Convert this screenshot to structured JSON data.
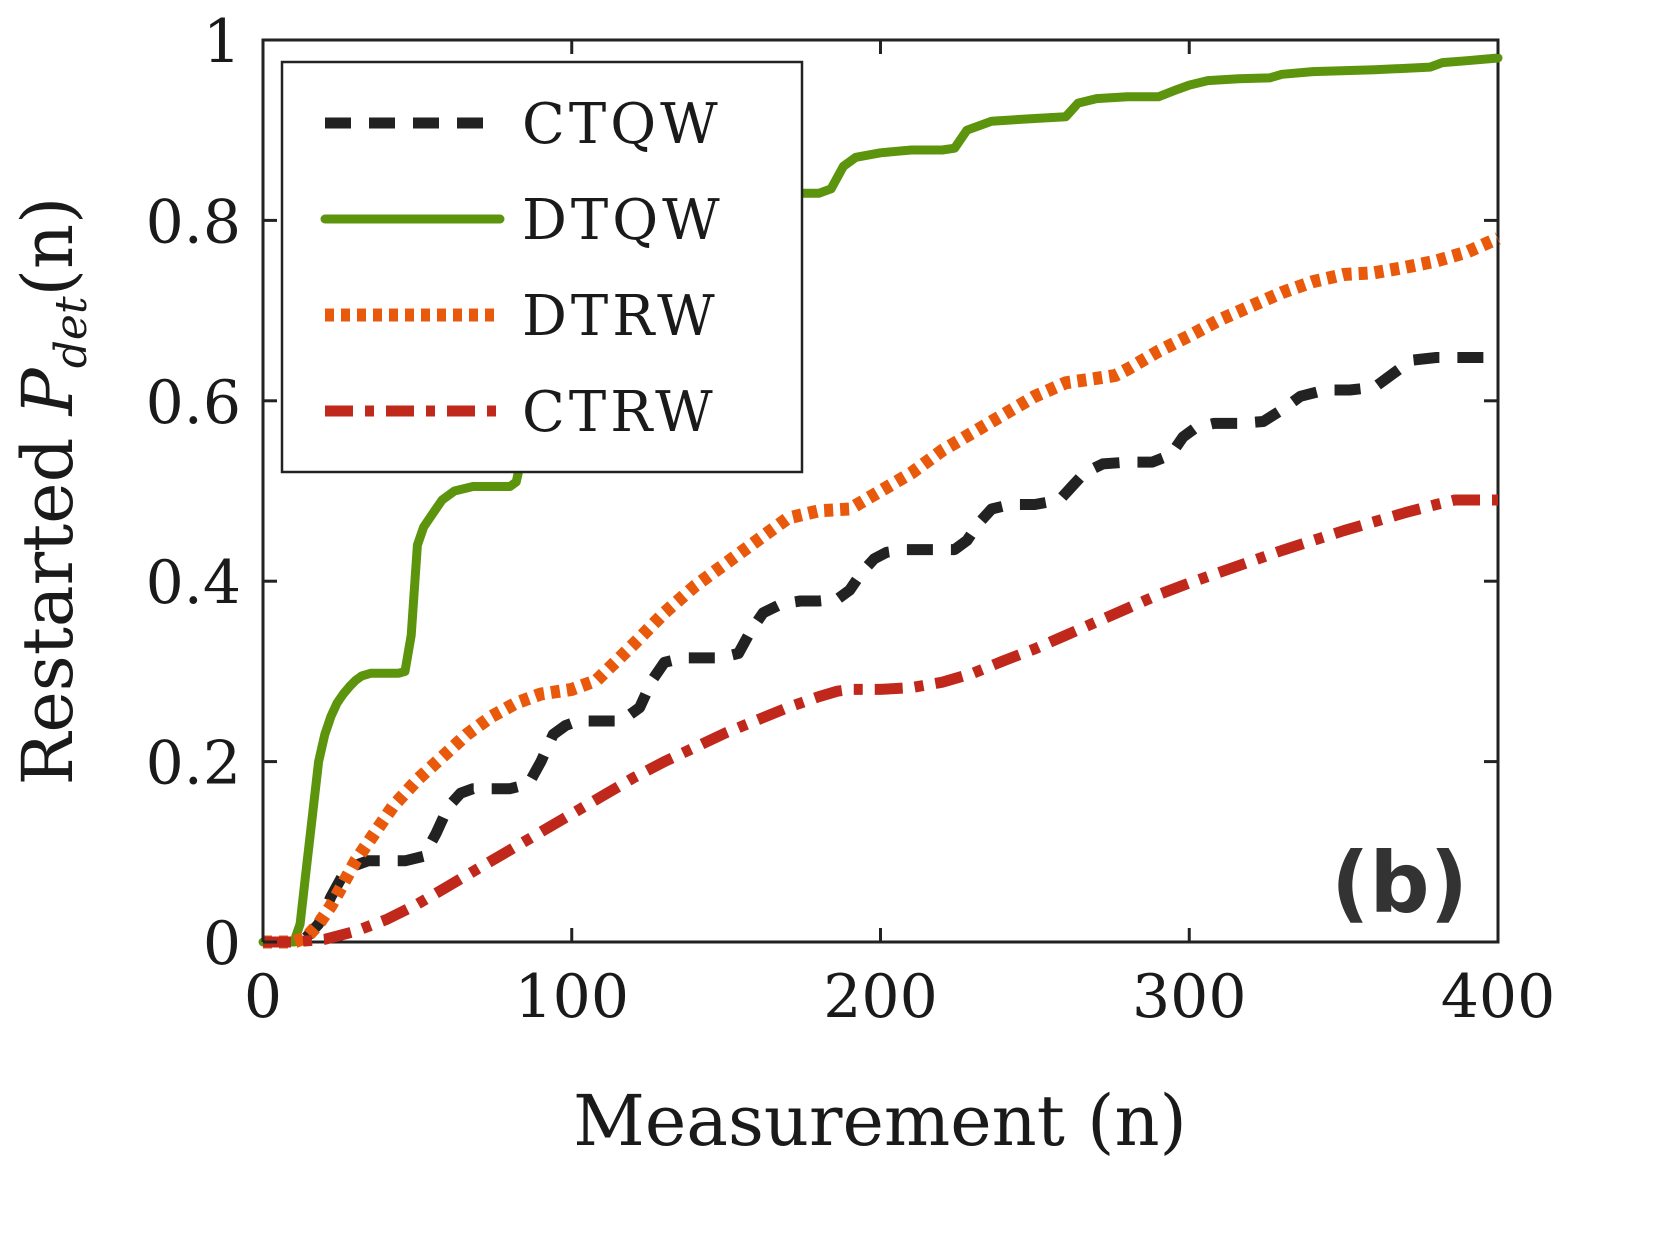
{
  "chart_data": {
    "type": "line",
    "title": "",
    "xlabel": "Measurement (n)",
    "ylabel": "Restarted P_det(n)",
    "ylabel_parts": {
      "main": "Restarted ",
      "symbol": "P",
      "subscript": "det",
      "arg": "(n)"
    },
    "panel_label": "(b)",
    "xlim": [
      0,
      400
    ],
    "ylim": [
      0,
      1
    ],
    "xticks": [
      0,
      100,
      200,
      300,
      400
    ],
    "yticks": [
      0,
      0.2,
      0.4,
      0.6,
      0.8,
      1
    ],
    "xtick_labels": [
      "0",
      "100",
      "200",
      "300",
      "400"
    ],
    "ytick_labels": [
      "0",
      "0.2",
      "0.4",
      "0.6",
      "0.8",
      "1"
    ],
    "grid": false,
    "legend_position": "top-left",
    "series": [
      {
        "name": "CTQW",
        "color": "#222222",
        "style": "dashed",
        "x": [
          0,
          10,
          14,
          18,
          22,
          26,
          30,
          34,
          40,
          46,
          52,
          56,
          60,
          64,
          68,
          74,
          80,
          86,
          90,
          94,
          98,
          102,
          108,
          116,
          122,
          126,
          130,
          136,
          142,
          148,
          154,
          158,
          162,
          168,
          174,
          180,
          186,
          190,
          194,
          198,
          202,
          208,
          216,
          224,
          228,
          232,
          236,
          242,
          250,
          258,
          262,
          266,
          272,
          280,
          288,
          294,
          298,
          302,
          308,
          316,
          324,
          330,
          336,
          344,
          352,
          360,
          366,
          372,
          380,
          390,
          400
        ],
        "y": [
          0,
          0,
          0.005,
          0.02,
          0.05,
          0.075,
          0.085,
          0.09,
          0.09,
          0.09,
          0.095,
          0.12,
          0.15,
          0.165,
          0.17,
          0.17,
          0.17,
          0.175,
          0.2,
          0.23,
          0.24,
          0.245,
          0.245,
          0.245,
          0.26,
          0.29,
          0.31,
          0.315,
          0.315,
          0.315,
          0.32,
          0.345,
          0.365,
          0.375,
          0.378,
          0.378,
          0.38,
          0.39,
          0.41,
          0.425,
          0.432,
          0.435,
          0.435,
          0.435,
          0.445,
          0.465,
          0.48,
          0.485,
          0.485,
          0.49,
          0.505,
          0.52,
          0.53,
          0.532,
          0.532,
          0.54,
          0.56,
          0.57,
          0.575,
          0.575,
          0.577,
          0.59,
          0.605,
          0.612,
          0.612,
          0.615,
          0.63,
          0.645,
          0.648,
          0.648,
          0.648
        ]
      },
      {
        "name": "DTQW",
        "color": "#5c940d",
        "style": "solid",
        "x": [
          0,
          10,
          12,
          14,
          16,
          18,
          20,
          22,
          24,
          26,
          28,
          30,
          32,
          35,
          40,
          44,
          46,
          48,
          50,
          52,
          55,
          58,
          62,
          68,
          75,
          80,
          82,
          84,
          86,
          88,
          92,
          100,
          108,
          116,
          118,
          120,
          124,
          132,
          140,
          148,
          152,
          155,
          160,
          170,
          180,
          184,
          188,
          192,
          200,
          210,
          220,
          224,
          228,
          236,
          250,
          260,
          264,
          270,
          280,
          290,
          296,
          300,
          306,
          316,
          326,
          330,
          340,
          360,
          378,
          382,
          390,
          400
        ],
        "y": [
          0,
          0,
          0.02,
          0.08,
          0.14,
          0.2,
          0.23,
          0.25,
          0.265,
          0.275,
          0.283,
          0.29,
          0.295,
          0.298,
          0.298,
          0.298,
          0.3,
          0.34,
          0.44,
          0.46,
          0.475,
          0.49,
          0.5,
          0.505,
          0.505,
          0.505,
          0.51,
          0.54,
          0.58,
          0.62,
          0.64,
          0.65,
          0.655,
          0.66,
          0.69,
          0.72,
          0.745,
          0.75,
          0.755,
          0.755,
          0.77,
          0.81,
          0.83,
          0.83,
          0.83,
          0.835,
          0.86,
          0.87,
          0.875,
          0.878,
          0.878,
          0.88,
          0.9,
          0.91,
          0.913,
          0.915,
          0.93,
          0.935,
          0.937,
          0.937,
          0.945,
          0.95,
          0.955,
          0.957,
          0.958,
          0.962,
          0.965,
          0.967,
          0.97,
          0.975,
          0.977,
          0.98
        ]
      },
      {
        "name": "DTRW",
        "color": "#e8590c",
        "style": "dotted",
        "x": [
          0,
          10,
          14,
          18,
          22,
          26,
          30,
          36,
          42,
          50,
          58,
          66,
          74,
          82,
          90,
          100,
          108,
          114,
          120,
          130,
          140,
          150,
          160,
          170,
          180,
          190,
          200,
          210,
          220,
          230,
          240,
          250,
          260,
          270,
          276,
          280,
          290,
          300,
          310,
          320,
          330,
          340,
          350,
          360,
          370,
          380,
          390,
          400
        ],
        "y": [
          0,
          0,
          0.005,
          0.02,
          0.04,
          0.065,
          0.09,
          0.12,
          0.15,
          0.18,
          0.205,
          0.23,
          0.25,
          0.265,
          0.275,
          0.28,
          0.29,
          0.31,
          0.33,
          0.365,
          0.395,
          0.42,
          0.445,
          0.47,
          0.478,
          0.48,
          0.5,
          0.52,
          0.545,
          0.565,
          0.585,
          0.605,
          0.62,
          0.625,
          0.628,
          0.635,
          0.655,
          0.672,
          0.69,
          0.705,
          0.72,
          0.732,
          0.74,
          0.742,
          0.748,
          0.755,
          0.765,
          0.78
        ]
      },
      {
        "name": "CTRW",
        "color": "#c0281b",
        "style": "dashdot",
        "x": [
          0,
          10,
          20,
          30,
          40,
          50,
          60,
          70,
          80,
          90,
          100,
          110,
          120,
          130,
          140,
          150,
          160,
          170,
          180,
          186,
          190,
          200,
          210,
          220,
          230,
          240,
          250,
          260,
          270,
          280,
          290,
          300,
          310,
          320,
          330,
          340,
          350,
          360,
          370,
          380,
          386,
          390,
          400
        ],
        "y": [
          0,
          0,
          0.003,
          0.012,
          0.025,
          0.042,
          0.062,
          0.082,
          0.102,
          0.122,
          0.142,
          0.162,
          0.182,
          0.2,
          0.216,
          0.232,
          0.246,
          0.26,
          0.272,
          0.278,
          0.28,
          0.28,
          0.282,
          0.288,
          0.298,
          0.312,
          0.325,
          0.34,
          0.355,
          0.37,
          0.385,
          0.398,
          0.41,
          0.422,
          0.434,
          0.445,
          0.456,
          0.466,
          0.476,
          0.485,
          0.49,
          0.49,
          0.49
        ]
      }
    ]
  }
}
